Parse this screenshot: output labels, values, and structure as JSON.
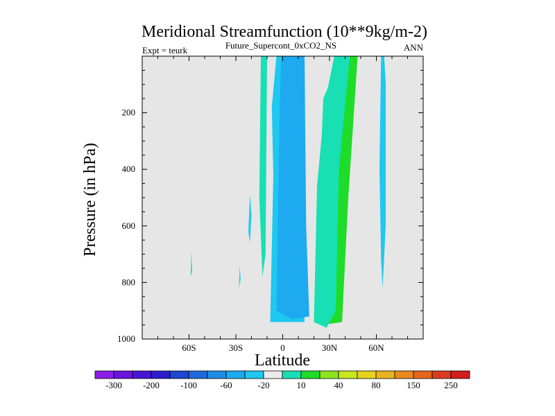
{
  "chart_data": {
    "type": "heatmap",
    "title": "Meridional Streamfunction (10**9kg/m-2)",
    "subtitle": "Future_Supercont_0xCO2_NS",
    "left_label": "Expt = teurk",
    "right_label": "ANN",
    "xlabel": "Latitude",
    "ylabel": "Pressure (in hPa)",
    "xlim": [
      -90,
      90
    ],
    "ylim": [
      1000,
      0
    ],
    "y_reversed": true,
    "x_ticks": [
      {
        "value": -60,
        "label": "60S"
      },
      {
        "value": -30,
        "label": "30S"
      },
      {
        "value": 0,
        "label": "0"
      },
      {
        "value": 30,
        "label": "30N"
      },
      {
        "value": 60,
        "label": "60N"
      }
    ],
    "y_ticks": [
      {
        "value": 200,
        "label": "200"
      },
      {
        "value": 400,
        "label": "400"
      },
      {
        "value": 600,
        "label": "600"
      },
      {
        "value": 800,
        "label": "800"
      },
      {
        "value": 1000,
        "label": "1000"
      }
    ],
    "background_color": "#e6e6e6",
    "colorbar": {
      "colors": [
        "#8a1ee6",
        "#6a14e0",
        "#4a14d4",
        "#2c1ccc",
        "#1e46d2",
        "#1e6adc",
        "#1e8ce6",
        "#1eaaf0",
        "#1ec8f0",
        "#ebebeb",
        "#18e0b4",
        "#1edc28",
        "#8ce61e",
        "#c8e61e",
        "#e6d21e",
        "#e6b41e",
        "#e68c1e",
        "#e6641e",
        "#dc3c1e",
        "#d21e1e"
      ],
      "labels": [
        {
          "text": "-300",
          "boundary": 1
        },
        {
          "text": "-200",
          "boundary": 3
        },
        {
          "text": "-100",
          "boundary": 5
        },
        {
          "text": "-60",
          "boundary": 7
        },
        {
          "text": "-20",
          "boundary": 9
        },
        {
          "text": "10",
          "boundary": 11
        },
        {
          "text": "40",
          "boundary": 13
        },
        {
          "text": "80",
          "boundary": 15
        },
        {
          "text": "150",
          "boundary": 17
        },
        {
          "text": "250",
          "boundary": 19
        }
      ]
    },
    "regions": [
      {
        "name": "green-band-tropics-north",
        "color": "#1edc28",
        "points": [
          [
            25,
            950
          ],
          [
            38,
            940
          ],
          [
            42,
            500
          ],
          [
            48,
            0
          ],
          [
            42,
            0
          ],
          [
            32,
            100
          ],
          [
            26,
            460
          ]
        ]
      },
      {
        "name": "teal-band-north",
        "color": "#18e0b4",
        "points": [
          [
            20,
            940
          ],
          [
            28,
            960
          ],
          [
            34,
            900
          ],
          [
            36,
            400
          ],
          [
            43,
            0
          ],
          [
            33,
            0
          ],
          [
            29,
            110
          ],
          [
            26,
            150
          ],
          [
            25,
            280
          ],
          [
            22,
            460
          ]
        ]
      },
      {
        "name": "teal-band-south-edge",
        "color": "#18e0b4",
        "points": [
          [
            -13,
            780
          ],
          [
            -11,
            700
          ],
          [
            -10,
            0
          ],
          [
            -14,
            0
          ],
          [
            -15,
            500
          ]
        ]
      },
      {
        "name": "deep-blue-core-south",
        "color": "#1eaaf0",
        "points": [
          [
            -5,
            920
          ],
          [
            -3,
            300
          ],
          [
            -4,
            0
          ],
          [
            -1,
            0
          ],
          [
            0,
            600
          ],
          [
            1,
            820
          ],
          [
            -1,
            930
          ]
        ]
      },
      {
        "name": "light-blue-cell-equator",
        "color": "#1ec8f0",
        "points": [
          [
            -8,
            940
          ],
          [
            -6,
            420
          ],
          [
            -7,
            180
          ],
          [
            -4,
            0
          ],
          [
            3,
            0
          ],
          [
            6,
            420
          ],
          [
            12,
            700
          ],
          [
            14,
            940
          ]
        ]
      },
      {
        "name": "mid-blue-cell-equator",
        "color": "#1eaaf0",
        "points": [
          [
            -4,
            900
          ],
          [
            -2,
            200
          ],
          [
            -1,
            0
          ],
          [
            14,
            0
          ],
          [
            15,
            600
          ],
          [
            17,
            920
          ],
          [
            6,
            930
          ]
        ]
      },
      {
        "name": "streak-60N",
        "color": "#1ec8f0",
        "points": [
          [
            64,
            820
          ],
          [
            66,
            600
          ],
          [
            66,
            100
          ],
          [
            65,
            0
          ],
          [
            63,
            0
          ],
          [
            62,
            400
          ],
          [
            63,
            720
          ]
        ]
      },
      {
        "name": "streak-20S",
        "color": "#1ec8f0",
        "points": [
          [
            -22,
            620
          ],
          [
            -21,
            490
          ],
          [
            -20,
            560
          ],
          [
            -21,
            660
          ]
        ]
      },
      {
        "name": "streak-30S",
        "color": "#1ec8f0",
        "points": [
          [
            -28,
            820
          ],
          [
            -27.5,
            740
          ],
          [
            -27,
            790
          ]
        ]
      },
      {
        "name": "streak-60S",
        "color": "#18e0b4",
        "points": [
          [
            -59,
            780
          ],
          [
            -58.5,
            690
          ],
          [
            -58,
            760
          ]
        ]
      }
    ]
  }
}
